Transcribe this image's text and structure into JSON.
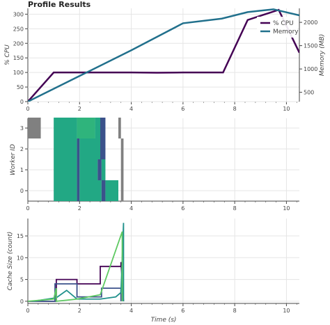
{
  "page_title": "Profile Results",
  "chart_data": [
    {
      "type": "line",
      "title": "Profile Results",
      "xlabel": "",
      "ylabel": "% CPU",
      "y2label": "Memory (MB)",
      "xlim": [
        0,
        10.5
      ],
      "ylim": [
        0,
        320
      ],
      "y2lim": [
        300,
        2300
      ],
      "x_ticks": [
        0,
        2,
        4,
        6,
        8,
        10
      ],
      "y_ticks": [
        0,
        50,
        100,
        150,
        200,
        250,
        300
      ],
      "y2_ticks": [
        500,
        1000,
        1500,
        2000
      ],
      "legend_position": "top-right",
      "series": [
        {
          "name": "% CPU",
          "axis": "left",
          "color": "#440154",
          "x": [
            0,
            1,
            2,
            3,
            4,
            5,
            6,
            7.55,
            8.5,
            9.7,
            10.5
          ],
          "y": [
            0,
            100,
            100,
            100,
            100,
            99,
            100,
            100,
            280,
            315,
            168
          ]
        },
        {
          "name": "Memory",
          "axis": "right",
          "color": "#21708c",
          "x": [
            0,
            2,
            4,
            6,
            7.5,
            8.5,
            9.5,
            10.5
          ],
          "y": [
            300,
            850,
            1400,
            1980,
            2080,
            2220,
            2280,
            2150
          ]
        }
      ]
    },
    {
      "type": "bar",
      "subtype": "timeline",
      "xlabel": "",
      "ylabel": "Worker ID",
      "xlim": [
        0,
        10.5
      ],
      "x_ticks": [
        0,
        2,
        4,
        6,
        8,
        10
      ],
      "y_ticks": [
        0,
        1,
        2,
        3
      ],
      "tasks": [
        {
          "worker": 3,
          "start": 0.0,
          "end": 0.5,
          "color": "#808080"
        },
        {
          "worker": 3,
          "start": 1.0,
          "end": 1.9,
          "color": "#22a884"
        },
        {
          "worker": 3,
          "start": 1.9,
          "end": 2.6,
          "color": "#2fb47c"
        },
        {
          "worker": 3,
          "start": 2.6,
          "end": 2.8,
          "color": "#22a884"
        },
        {
          "worker": 3,
          "start": 2.8,
          "end": 3.0,
          "color": "#3b528b"
        },
        {
          "worker": 3,
          "start": 3.5,
          "end": 3.6,
          "color": "#808080"
        },
        {
          "worker": 2,
          "start": 1.0,
          "end": 1.9,
          "color": "#22a884"
        },
        {
          "worker": 2,
          "start": 1.9,
          "end": 2.0,
          "color": "#3b528b"
        },
        {
          "worker": 2,
          "start": 2.0,
          "end": 2.8,
          "color": "#22a884"
        },
        {
          "worker": 2,
          "start": 2.8,
          "end": 3.0,
          "color": "#3b528b"
        },
        {
          "worker": 2,
          "start": 3.6,
          "end": 3.7,
          "color": "#808080"
        },
        {
          "worker": 1,
          "start": 1.0,
          "end": 1.9,
          "color": "#22a884"
        },
        {
          "worker": 1,
          "start": 1.9,
          "end": 2.0,
          "color": "#3b528b"
        },
        {
          "worker": 1,
          "start": 2.0,
          "end": 2.7,
          "color": "#22a884"
        },
        {
          "worker": 1,
          "start": 2.7,
          "end": 2.85,
          "color": "#3b528b"
        },
        {
          "worker": 1,
          "start": 2.85,
          "end": 3.0,
          "color": "#22a884"
        },
        {
          "worker": 1,
          "start": 3.6,
          "end": 3.7,
          "color": "#808080"
        },
        {
          "worker": 0,
          "start": 1.0,
          "end": 1.9,
          "color": "#22a884"
        },
        {
          "worker": 0,
          "start": 1.9,
          "end": 2.0,
          "color": "#3b528b"
        },
        {
          "worker": 0,
          "start": 2.0,
          "end": 2.85,
          "color": "#22a884"
        },
        {
          "worker": 0,
          "start": 2.85,
          "end": 3.0,
          "color": "#3b528b"
        },
        {
          "worker": 0,
          "start": 3.0,
          "end": 3.5,
          "color": "#22a884"
        },
        {
          "worker": 0,
          "start": 3.6,
          "end": 3.7,
          "color": "#808080"
        }
      ]
    },
    {
      "type": "line",
      "subtype": "step",
      "xlabel": "Time (s)",
      "ylabel": "Cache Size (count)",
      "xlim": [
        0,
        10.5
      ],
      "ylim": [
        -0.5,
        19
      ],
      "x_ticks": [
        0,
        2,
        4,
        6,
        8,
        10
      ],
      "y_ticks": [
        0,
        5,
        10,
        15
      ],
      "series": [
        {
          "color": "#440154",
          "x": [
            0,
            1.1,
            1.1,
            1.9,
            1.9,
            2.8,
            2.8,
            3.6,
            3.6,
            3.7
          ],
          "y": [
            0,
            0,
            5,
            5,
            4,
            4,
            8,
            8,
            9,
            0
          ]
        },
        {
          "color": "#3b528b",
          "x": [
            0,
            1.05,
            1.05,
            1.9,
            1.9,
            2.85,
            2.85,
            3.6,
            3.6
          ],
          "y": [
            0,
            0,
            4,
            4,
            1,
            1,
            3,
            3,
            0
          ]
        },
        {
          "color": "#21918c",
          "x": [
            0.2,
            1.1,
            1.5,
            1.9,
            2.8,
            3.4,
            3.6,
            3.7,
            3.7
          ],
          "y": [
            0,
            0.8,
            2.5,
            0.5,
            0.5,
            1,
            2,
            18,
            0
          ]
        },
        {
          "color": "#5ec962",
          "x": [
            0,
            1.0,
            1.1,
            1.1,
            1.9,
            2.8,
            3.65,
            3.65
          ],
          "y": [
            0,
            0.5,
            3,
            0,
            0.5,
            1.5,
            16,
            0
          ]
        }
      ]
    }
  ]
}
